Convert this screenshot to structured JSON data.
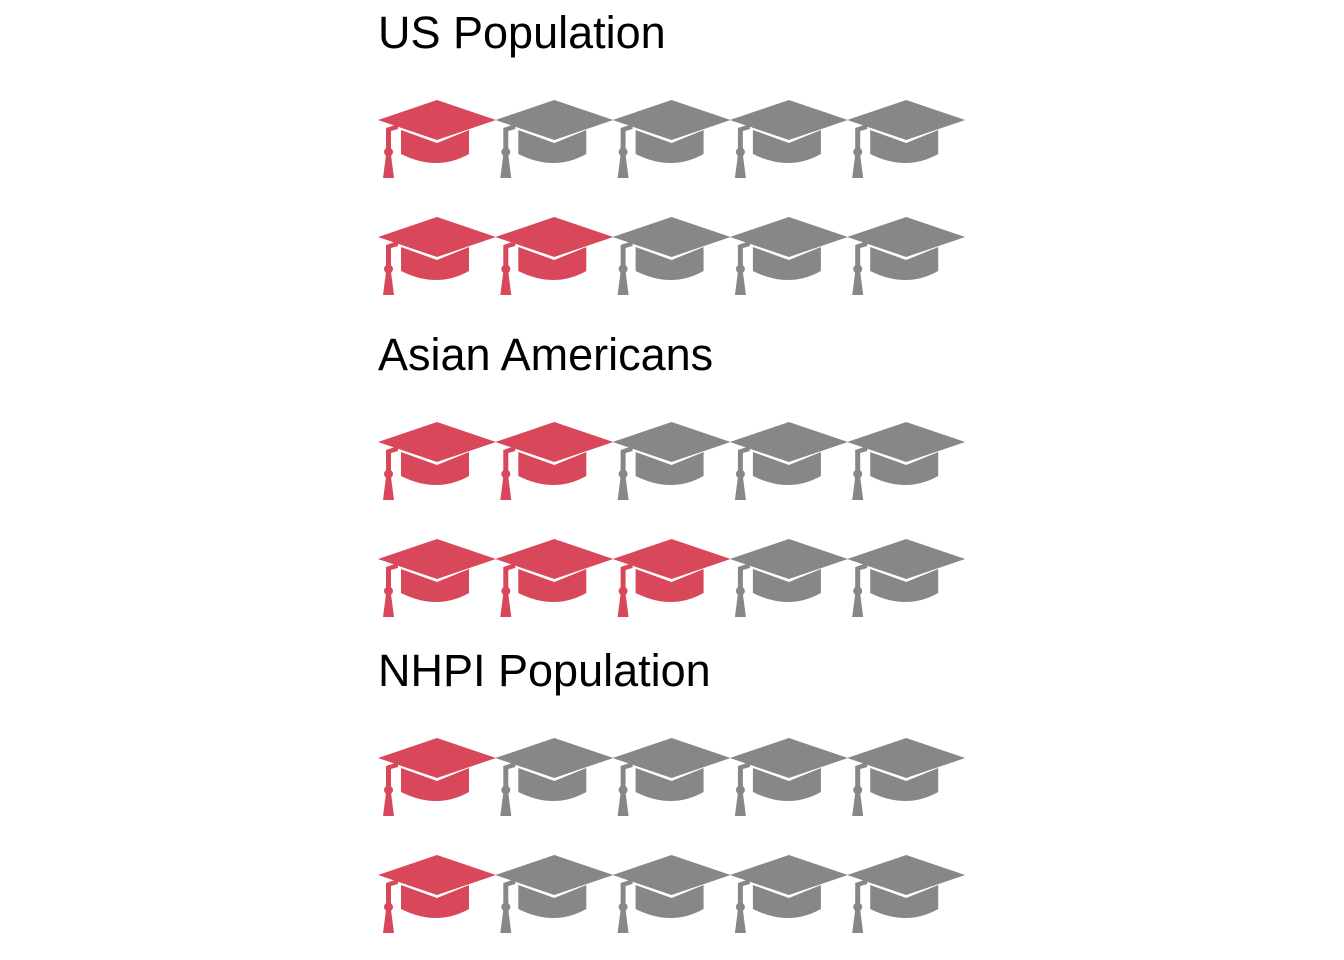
{
  "chart_data": {
    "type": "pictogram",
    "icon": "graduation-cap-icon",
    "icons_per_row": 5,
    "colors": {
      "filled": "#D9485A",
      "empty": "#878787"
    },
    "groups": [
      {
        "title": "US Population",
        "rows": [
          1,
          2
        ]
      },
      {
        "title": "Asian Americans",
        "rows": [
          2,
          3
        ]
      },
      {
        "title": "NHPI Population",
        "rows": [
          1,
          1
        ]
      }
    ]
  }
}
